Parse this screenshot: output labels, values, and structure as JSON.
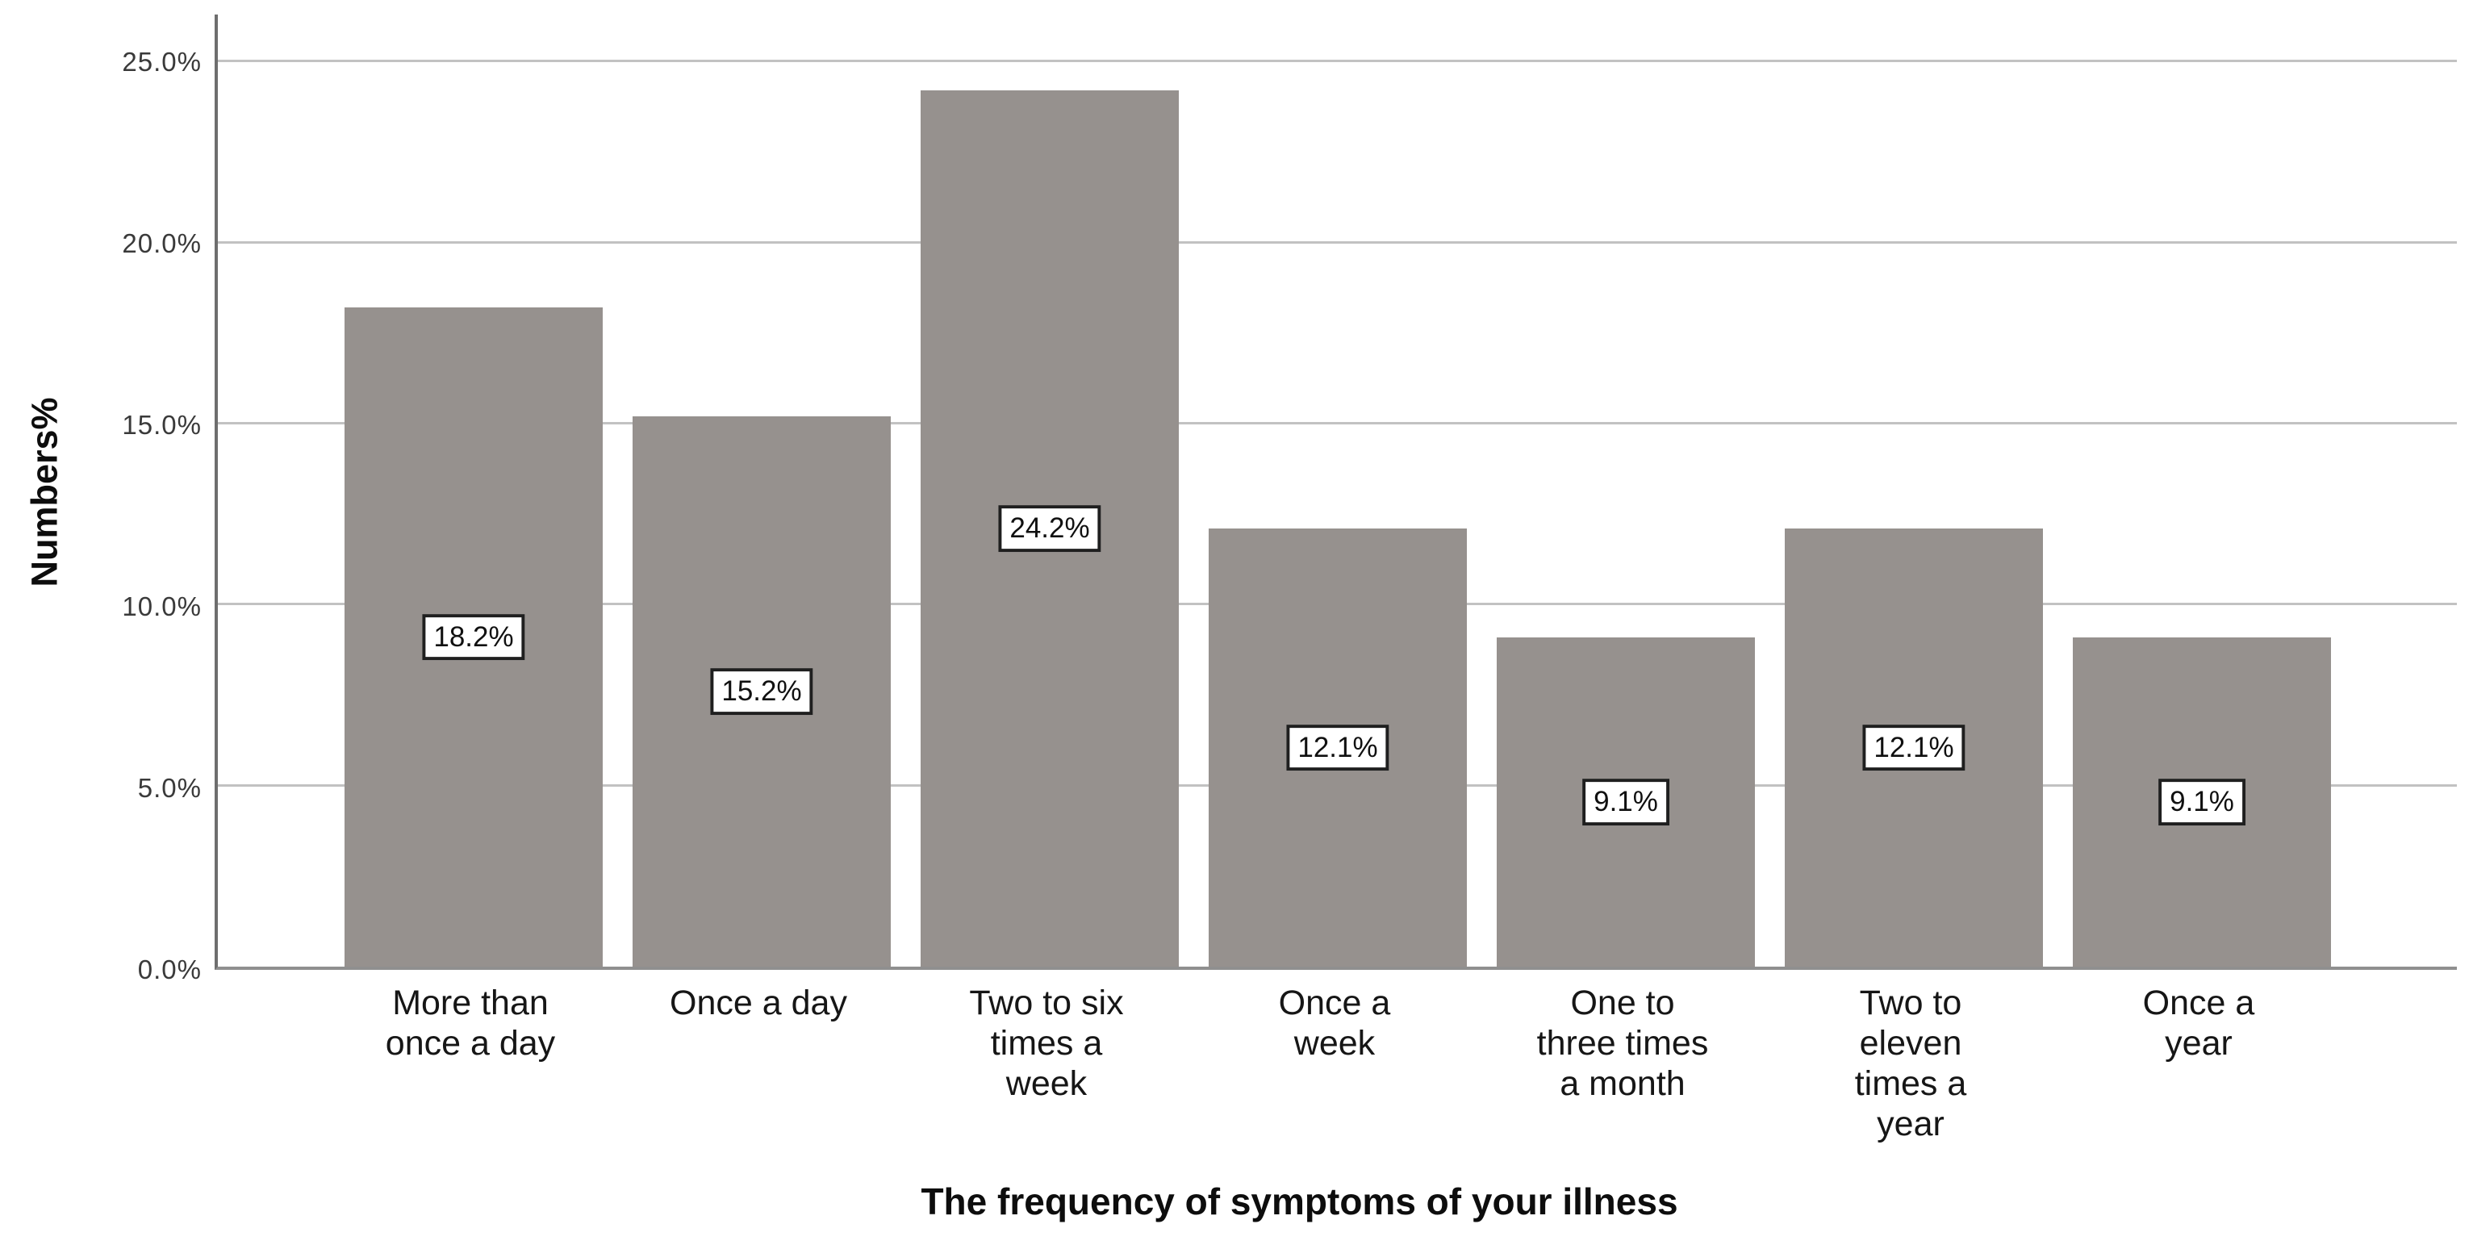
{
  "chart_data": {
    "type": "bar",
    "title": "",
    "xlabel": "The frequency of symptoms of your illness",
    "ylabel": "Numbers%",
    "categories": [
      "More than\nonce a day",
      "Once a day",
      "Two to six\ntimes a\nweek",
      "Once a\nweek",
      "One to\nthree times\na month",
      "Two to\neleven\ntimes a\nyear",
      "Once a\nyear"
    ],
    "values": [
      18.2,
      15.2,
      24.2,
      12.1,
      9.1,
      12.1,
      9.1
    ],
    "value_labels": [
      "18.2%",
      "15.2%",
      "24.2%",
      "12.1%",
      "9.1%",
      "12.1%",
      "9.1%"
    ],
    "yticks": [
      {
        "value": 0,
        "label": "0.0%"
      },
      {
        "value": 5,
        "label": "5.0%"
      },
      {
        "value": 10,
        "label": "10.0%"
      },
      {
        "value": 15,
        "label": "15.0%"
      },
      {
        "value": 20,
        "label": "20.0%"
      },
      {
        "value": 25,
        "label": "25.0%"
      }
    ],
    "ylim": [
      0,
      26.3
    ],
    "grid": "horizontal",
    "legend": "none",
    "bar_color": "#96918e",
    "gridline_color": "#c2c2c2",
    "axis_color": "#6e6e6e",
    "value_box": {
      "bg": "#ffffff",
      "border": "#1f1f1f",
      "text": "#101010"
    }
  }
}
